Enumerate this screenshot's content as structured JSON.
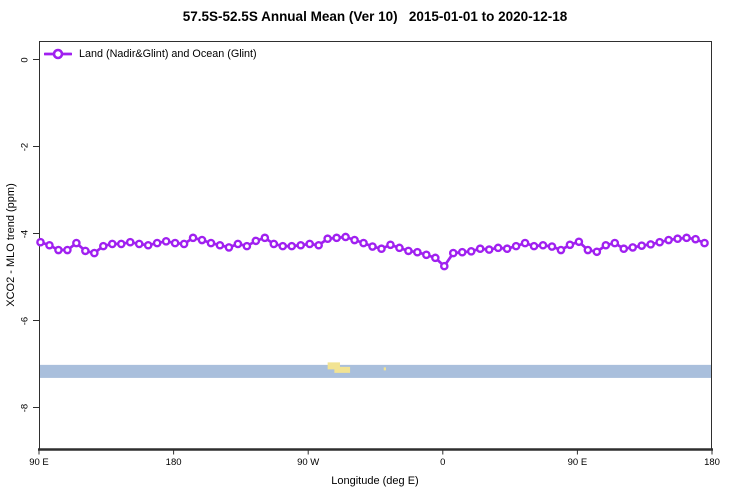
{
  "title": "57.5S-52.5S Annual Mean (Ver 10)   2015-01-01 to 2020-12-18",
  "legend": {
    "label": "Land (Nadir&Glint) and Ocean (Glint)"
  },
  "colors": {
    "series": "#A020F0",
    "marker_fill": "#FFFFFF",
    "axis": "#2F2F2F",
    "text": "#000000",
    "ocean_band": "#A9BFDC",
    "land_patch": "#F2E392"
  },
  "axes": {
    "x": {
      "label": "Longitude (deg E)",
      "range": [
        90,
        540
      ],
      "ticks": [
        {
          "lon": 90,
          "label": "90 E"
        },
        {
          "lon": 180,
          "label": "180"
        },
        {
          "lon": 270,
          "label": "90 W"
        },
        {
          "lon": 360,
          "label": "0"
        },
        {
          "lon": 450,
          "label": "90 E"
        },
        {
          "lon": 540,
          "label": "180"
        }
      ]
    },
    "y": {
      "label": "XCO2 - MLO trend (ppm)",
      "range": [
        0.45,
        -9.0
      ],
      "ticks": [
        {
          "value": 0,
          "label": "0"
        },
        {
          "value": -2,
          "label": "-2"
        },
        {
          "value": -4,
          "label": "-4"
        },
        {
          "value": -6,
          "label": "-6"
        },
        {
          "value": -8,
          "label": "-8"
        }
      ]
    }
  },
  "chart_data": {
    "type": "line",
    "title": "57.5S-52.5S Annual Mean (Ver 10)   2015-01-01 to 2020-12-18",
    "xlabel": "Longitude (deg E)",
    "ylabel": "XCO2 - MLO trend (ppm)",
    "xlim": [
      90,
      540
    ],
    "ylim": [
      0.45,
      -9.0
    ],
    "grid": false,
    "legend_position": "top-left",
    "series": [
      {
        "name": "Land (Nadir&Glint) and Ocean (Glint)",
        "marker": "open-circle",
        "x": [
          91,
          97,
          103,
          109,
          115,
          121,
          127,
          133,
          139,
          145,
          151,
          157,
          163,
          169,
          175,
          181,
          187,
          193,
          199,
          205,
          211,
          217,
          223,
          229,
          235,
          241,
          247,
          253,
          259,
          265,
          271,
          277,
          283,
          289,
          295,
          301,
          307,
          313,
          319,
          325,
          331,
          337,
          343,
          349,
          355,
          361,
          367,
          373,
          379,
          385,
          391,
          397,
          403,
          409,
          415,
          421,
          427,
          433,
          439,
          445,
          451,
          457,
          463,
          469,
          475,
          481,
          487,
          493,
          499,
          505,
          511,
          517,
          523,
          529,
          535
        ],
        "values": [
          -4.2,
          -4.27,
          -4.38,
          -4.38,
          -4.22,
          -4.4,
          -4.45,
          -4.29,
          -4.24,
          -4.24,
          -4.2,
          -4.24,
          -4.27,
          -4.22,
          -4.18,
          -4.22,
          -4.24,
          -4.1,
          -4.15,
          -4.22,
          -4.27,
          -4.32,
          -4.24,
          -4.29,
          -4.17,
          -4.1,
          -4.24,
          -4.29,
          -4.29,
          -4.27,
          -4.24,
          -4.27,
          -4.12,
          -4.1,
          -4.08,
          -4.15,
          -4.22,
          -4.3,
          -4.35,
          -4.26,
          -4.33,
          -4.4,
          -4.43,
          -4.49,
          -4.56,
          -4.75,
          -4.45,
          -4.43,
          -4.41,
          -4.35,
          -4.37,
          -4.33,
          -4.35,
          -4.29,
          -4.22,
          -4.29,
          -4.27,
          -4.3,
          -4.38,
          -4.26,
          -4.19,
          -4.38,
          -4.42,
          -4.27,
          -4.22,
          -4.35,
          -4.32,
          -4.28,
          -4.25,
          -4.2,
          -4.15,
          -4.12,
          -4.1,
          -4.13,
          -4.22
        ]
      }
    ],
    "surface_strip": {
      "value_top": -7.02,
      "value_bottom": -7.32,
      "ocean_color": "#A9BFDC",
      "land_color": "#F2E392",
      "land_patches": [
        {
          "lon_start": 283,
          "lon_end": 298,
          "size": "large"
        },
        {
          "lon_start": 320.5,
          "lon_end": 322,
          "size": "small"
        }
      ]
    }
  }
}
